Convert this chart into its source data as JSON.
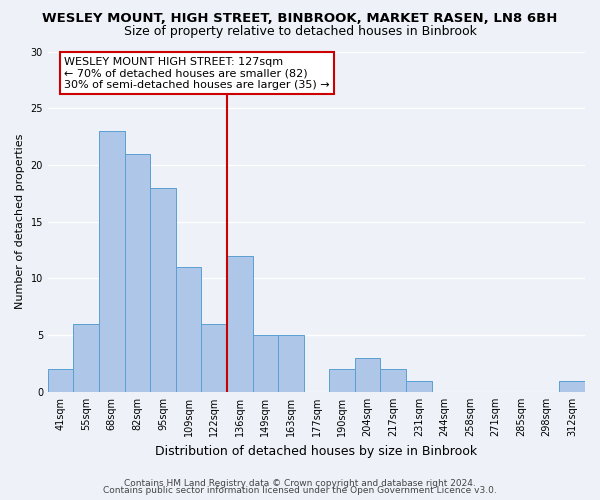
{
  "title": "WESLEY MOUNT, HIGH STREET, BINBROOK, MARKET RASEN, LN8 6BH",
  "subtitle": "Size of property relative to detached houses in Binbrook",
  "xlabel": "Distribution of detached houses by size in Binbrook",
  "ylabel": "Number of detached properties",
  "bin_labels": [
    "41sqm",
    "55sqm",
    "68sqm",
    "82sqm",
    "95sqm",
    "109sqm",
    "122sqm",
    "136sqm",
    "149sqm",
    "163sqm",
    "177sqm",
    "190sqm",
    "204sqm",
    "217sqm",
    "231sqm",
    "244sqm",
    "258sqm",
    "271sqm",
    "285sqm",
    "298sqm",
    "312sqm"
  ],
  "bin_values": [
    2,
    6,
    23,
    21,
    18,
    11,
    6,
    12,
    5,
    5,
    0,
    2,
    3,
    2,
    1,
    0,
    0,
    0,
    0,
    0,
    1
  ],
  "bar_color": "#aec6e8",
  "bar_edge_color": "#5a9fd4",
  "vline_x_index": 6.5,
  "vline_color": "#cc0000",
  "annotation_line1": "WESLEY MOUNT HIGH STREET: 127sqm",
  "annotation_line2": "← 70% of detached houses are smaller (82)",
  "annotation_line3": "30% of semi-detached houses are larger (35) →",
  "annotation_box_color": "#ffffff",
  "annotation_box_edge_color": "#cc0000",
  "ylim": [
    0,
    30
  ],
  "yticks": [
    0,
    5,
    10,
    15,
    20,
    25,
    30
  ],
  "footer_line1": "Contains HM Land Registry data © Crown copyright and database right 2024.",
  "footer_line2": "Contains public sector information licensed under the Open Government Licence v3.0.",
  "background_color": "#eef2f8",
  "grid_color": "#ffffff",
  "title_fontsize": 9.5,
  "subtitle_fontsize": 9,
  "ylabel_fontsize": 8,
  "xlabel_fontsize": 9,
  "tick_fontsize": 7,
  "footer_fontsize": 6.5,
  "annotation_fontsize": 8
}
